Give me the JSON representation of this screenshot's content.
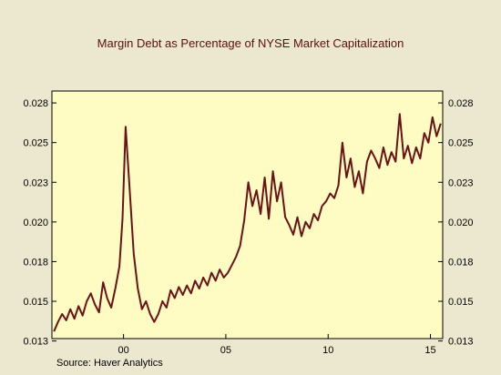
{
  "chart_data": {
    "type": "line",
    "title": "Margin Debt as Percentage of NYSE Market Capitalization",
    "source": "Source:   Haver Analytics",
    "x_range": [
      1996.5,
      2015.6
    ],
    "y_range": [
      0.01265,
      0.02825
    ],
    "x_ticks": [
      {
        "value": 2000,
        "label": "00"
      },
      {
        "value": 2005,
        "label": "05"
      },
      {
        "value": 2010,
        "label": "10"
      },
      {
        "value": 2015,
        "label": "15"
      }
    ],
    "y_ticks": [
      {
        "value": 0.0275,
        "label": "0.028"
      },
      {
        "value": 0.025,
        "label": "0.025"
      },
      {
        "value": 0.0225,
        "label": "0.023"
      },
      {
        "value": 0.02,
        "label": "0.020"
      },
      {
        "value": 0.0175,
        "label": "0.018"
      },
      {
        "value": 0.015,
        "label": "0.015"
      },
      {
        "value": 0.0125,
        "label": "0.013"
      }
    ],
    "series": [
      {
        "color": "#6b1218",
        "x": [
          1996.6,
          1996.8,
          1997.0,
          1997.2,
          1997.4,
          1997.6,
          1997.8,
          1998.0,
          1998.2,
          1998.4,
          1998.6,
          1998.8,
          1999.0,
          1999.2,
          1999.4,
          1999.6,
          1999.8,
          1999.95,
          2000.1,
          2000.3,
          2000.5,
          2000.7,
          2000.9,
          2001.1,
          2001.3,
          2001.5,
          2001.7,
          2001.9,
          2002.1,
          2002.3,
          2002.5,
          2002.7,
          2002.9,
          2003.1,
          2003.3,
          2003.5,
          2003.7,
          2003.9,
          2004.1,
          2004.3,
          2004.5,
          2004.7,
          2004.9,
          2005.1,
          2005.3,
          2005.5,
          2005.7,
          2005.9,
          2006.1,
          2006.3,
          2006.5,
          2006.7,
          2006.9,
          2007.1,
          2007.3,
          2007.5,
          2007.7,
          2007.9,
          2008.1,
          2008.3,
          2008.5,
          2008.7,
          2008.9,
          2009.1,
          2009.3,
          2009.5,
          2009.7,
          2009.9,
          2010.1,
          2010.3,
          2010.5,
          2010.7,
          2010.9,
          2011.1,
          2011.3,
          2011.5,
          2011.7,
          2011.9,
          2012.1,
          2012.3,
          2012.5,
          2012.7,
          2012.9,
          2013.1,
          2013.3,
          2013.5,
          2013.7,
          2013.9,
          2014.1,
          2014.3,
          2014.5,
          2014.7,
          2014.9,
          2015.1,
          2015.3,
          2015.5
        ],
        "y": [
          0.0131,
          0.0137,
          0.0142,
          0.0138,
          0.0145,
          0.0139,
          0.0147,
          0.0141,
          0.015,
          0.0155,
          0.0148,
          0.0143,
          0.0162,
          0.0152,
          0.0146,
          0.0158,
          0.0172,
          0.0202,
          0.026,
          0.022,
          0.018,
          0.0158,
          0.0145,
          0.015,
          0.0142,
          0.0137,
          0.0142,
          0.015,
          0.0146,
          0.0157,
          0.0152,
          0.0159,
          0.0154,
          0.016,
          0.0155,
          0.0163,
          0.0158,
          0.0165,
          0.016,
          0.0168,
          0.0163,
          0.017,
          0.0165,
          0.0168,
          0.0173,
          0.0178,
          0.0185,
          0.0201,
          0.0225,
          0.021,
          0.022,
          0.0205,
          0.0228,
          0.0202,
          0.0232,
          0.0213,
          0.0225,
          0.0203,
          0.0198,
          0.0192,
          0.0203,
          0.0191,
          0.02,
          0.0196,
          0.0205,
          0.0201,
          0.021,
          0.0213,
          0.0218,
          0.0215,
          0.0223,
          0.025,
          0.0228,
          0.024,
          0.0222,
          0.0232,
          0.0218,
          0.0238,
          0.0245,
          0.024,
          0.0234,
          0.0247,
          0.0236,
          0.0244,
          0.0238,
          0.0268,
          0.024,
          0.0248,
          0.0237,
          0.0247,
          0.024,
          0.0256,
          0.025,
          0.0266,
          0.0254,
          0.0262
        ]
      }
    ]
  }
}
